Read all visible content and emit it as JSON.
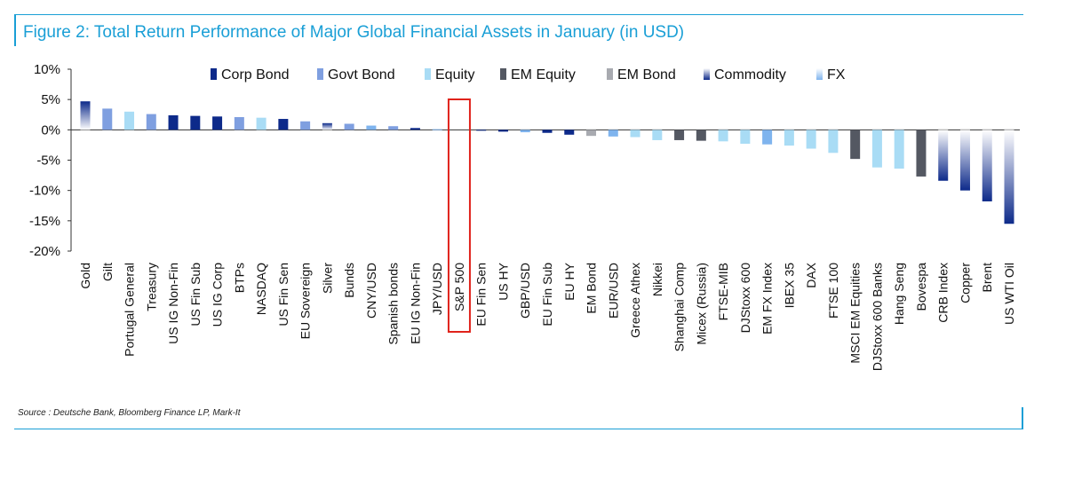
{
  "title": "Figure 2: Total Return Performance of Major Global Financial Assets in January (in USD)",
  "source": "Source : Deutsche Bank, Bloomberg Finance LP, Mark-It",
  "colors": {
    "accent": "#1a9fd6",
    "highlight_box": "#e0231b",
    "Corp Bond": "#0d2a8a",
    "Govt Bond": "#7f9fe0",
    "Equity": "#a9dcf5",
    "EM Equity": "#545862",
    "EM Bond": "#a8aab0",
    "Commodity": "#0d2a8a",
    "FX": "#7fb4ee"
  },
  "chart_data": {
    "type": "bar",
    "ylim": [
      -20,
      10
    ],
    "yticks": [
      10,
      5,
      0,
      -5,
      -10,
      -15,
      -20
    ],
    "ytick_labels": [
      "10%",
      "5%",
      "0%",
      "-5%",
      "-10%",
      "-15%",
      "-20%"
    ],
    "legend": [
      "Corp Bond",
      "Govt Bond",
      "Equity",
      "EM Equity",
      "EM Bond",
      "Commodity",
      "FX"
    ],
    "legend_position": "top",
    "highlighted_category": "S&P 500",
    "categories": [
      "Gold",
      "Gilt",
      "Portugal General",
      "Treasury",
      "US IG Non-Fin",
      "US Fin Sub",
      "US IG Corp",
      "BTPs",
      "NASDAQ",
      "US Fin Sen",
      "EU Sovereign",
      "Silver",
      "Bunds",
      "CNY/USD",
      "Spanish bonds",
      "EU IG Non-Fin",
      "JPY/USD",
      "S&P 500",
      "EU Fin Sen",
      "US HY",
      "GBP/USD",
      "EU Fin Sub",
      "EU HY",
      "EM Bond",
      "EUR/USD",
      "Greece Athex",
      "Nikkei",
      "Shanghai Comp",
      "Micex (Russia)",
      "FTSE-MIB",
      "DJStoxx 600",
      "EM FX Index",
      "IBEX 35",
      "DAX",
      "FTSE 100",
      "MSCI EM Equities",
      "DJStoxx 600 Banks",
      "Hang Seng",
      "Bovespa",
      "CRB Index",
      "Copper",
      "Brent",
      "US WTI Oil"
    ],
    "values": [
      4.7,
      3.5,
      3.0,
      2.6,
      2.4,
      2.3,
      2.2,
      2.1,
      2.0,
      1.8,
      1.4,
      1.1,
      1.0,
      0.7,
      0.6,
      0.3,
      0.1,
      0.0,
      -0.1,
      -0.3,
      -0.4,
      -0.5,
      -0.8,
      -1.0,
      -1.1,
      -1.2,
      -1.7,
      -1.7,
      -1.8,
      -1.9,
      -2.3,
      -2.4,
      -2.6,
      -3.1,
      -3.8,
      -4.8,
      -6.2,
      -6.4,
      -7.7,
      -8.4,
      -10.0,
      -11.8,
      -15.5
    ],
    "series_of_category": [
      "Commodity",
      "Govt Bond",
      "Equity",
      "Govt Bond",
      "Corp Bond",
      "Corp Bond",
      "Corp Bond",
      "Govt Bond",
      "Equity",
      "Corp Bond",
      "Govt Bond",
      "Commodity",
      "Govt Bond",
      "FX",
      "Govt Bond",
      "Corp Bond",
      "FX",
      "Equity",
      "Corp Bond",
      "Corp Bond",
      "FX",
      "Corp Bond",
      "Corp Bond",
      "EM Bond",
      "FX",
      "Equity",
      "Equity",
      "EM Equity",
      "EM Equity",
      "Equity",
      "Equity",
      "FX",
      "Equity",
      "Equity",
      "Equity",
      "EM Equity",
      "Equity",
      "Equity",
      "EM Equity",
      "Commodity",
      "Commodity",
      "Commodity",
      "Commodity"
    ]
  }
}
